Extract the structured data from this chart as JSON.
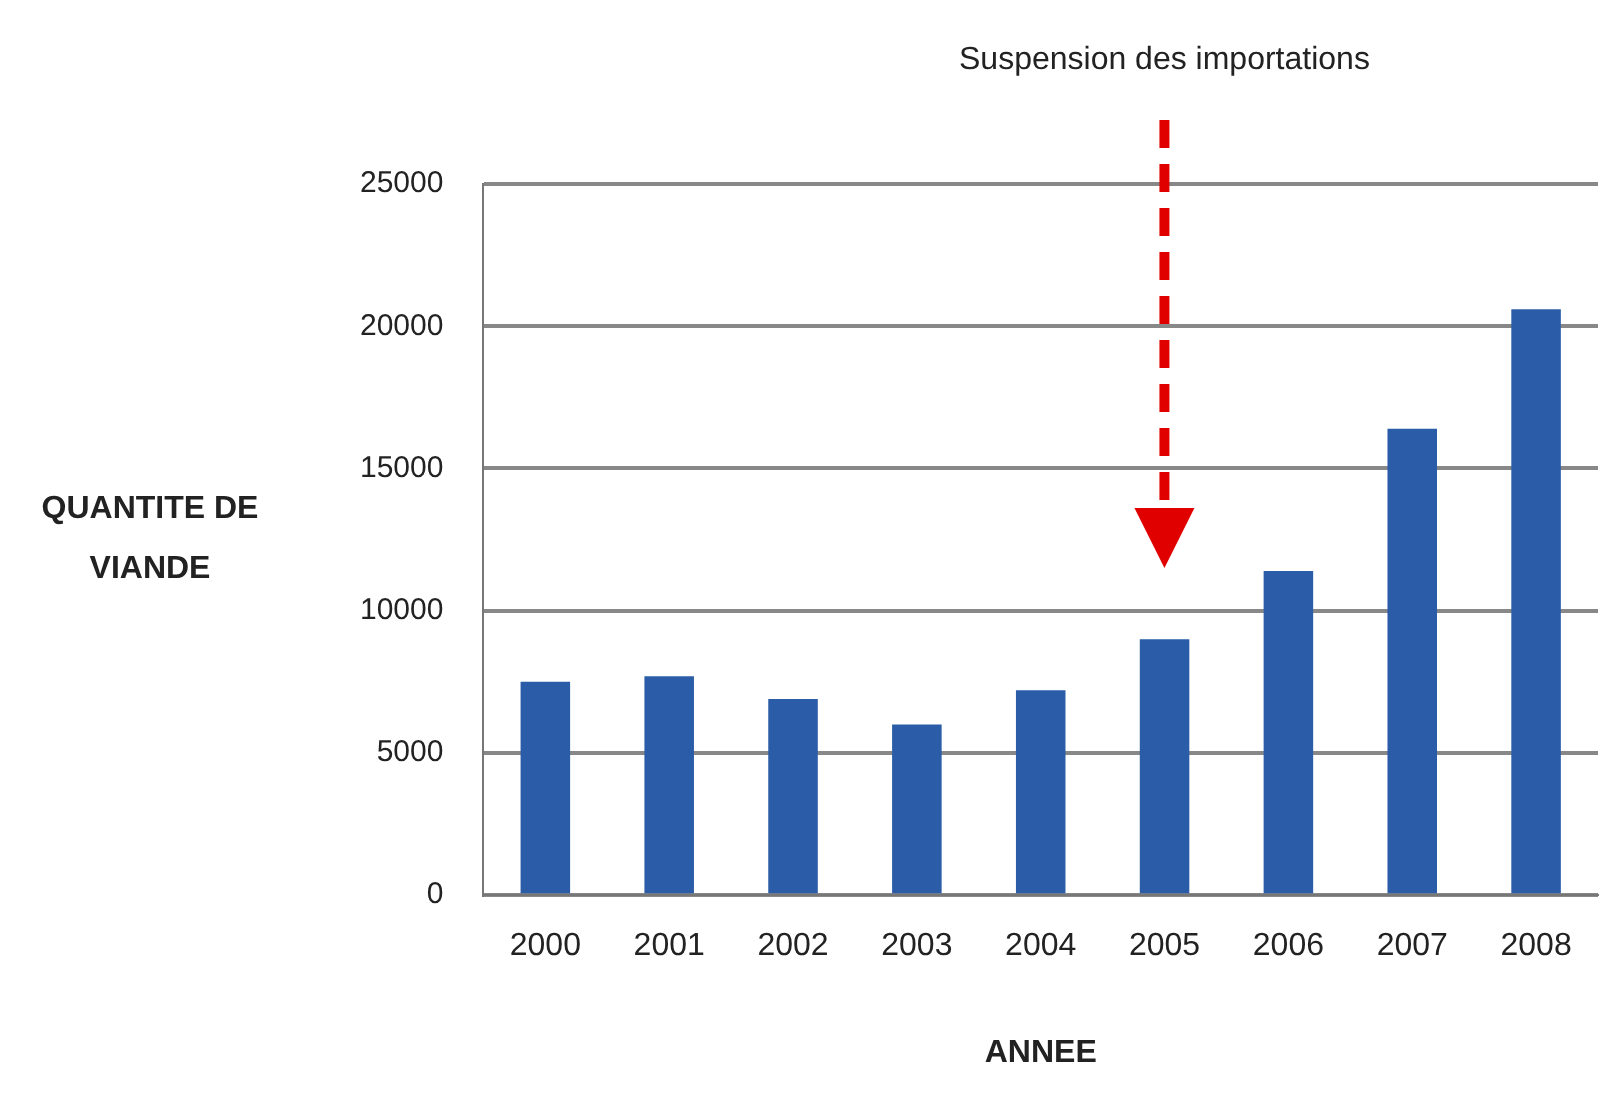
{
  "chart_data": {
    "type": "bar",
    "xlabel": "ANNEE",
    "ylabel": "QUANTITE DE VIANDE",
    "categories": [
      "2000",
      "2001",
      "2002",
      "2003",
      "2004",
      "2005",
      "2006",
      "2007",
      "2008"
    ],
    "values": [
      7500,
      7700,
      6900,
      6000,
      7200,
      9000,
      11400,
      16400,
      20600
    ],
    "color": "#2a5ca8",
    "ylim": [
      0,
      25000
    ],
    "yticks": [
      0,
      5000,
      10000,
      15000,
      20000,
      25000
    ],
    "grid": "y",
    "annotations": [
      "Suspension des importations"
    ]
  }
}
